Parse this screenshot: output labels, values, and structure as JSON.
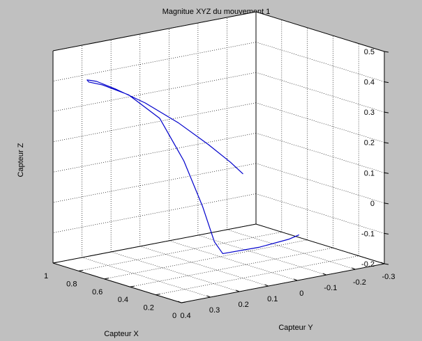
{
  "chart_data": {
    "type": "line",
    "projection": "3d",
    "title": "Magnitue XYZ du mouvement 1",
    "xlabel": "Capteur X",
    "ylabel": "Capteur Y",
    "zlabel": "Capteur Z",
    "xlim": [
      0,
      1
    ],
    "ylim": [
      -0.3,
      0.4
    ],
    "zlim": [
      -0.2,
      0.5
    ],
    "xticks": [
      "0",
      "0.2",
      "0.4",
      "0.6",
      "0.8",
      "1"
    ],
    "yticks": [
      "-0.3",
      "-0.2",
      "-0.1",
      "0",
      "0.1",
      "0.2",
      "0.3",
      "0.4"
    ],
    "zticks": [
      "-0.2",
      "-0.1",
      "0",
      "0.1",
      "0.2",
      "0.3",
      "0.4",
      "0.5"
    ],
    "grid": true,
    "series": [
      {
        "color": "#0000cc",
        "points": [
          [
            0.31,
            0.05,
            0.12
          ],
          [
            0.34,
            0.08,
            0.16
          ],
          [
            0.4,
            0.13,
            0.22
          ],
          [
            0.5,
            0.19,
            0.29
          ],
          [
            0.62,
            0.25,
            0.35
          ],
          [
            0.74,
            0.3,
            0.39
          ],
          [
            0.82,
            0.33,
            0.41
          ],
          [
            0.87,
            0.34,
            0.41
          ],
          [
            0.88,
            0.33,
            0.4
          ],
          [
            0.84,
            0.3,
            0.39
          ],
          [
            0.75,
            0.25,
            0.36
          ],
          [
            0.62,
            0.2,
            0.29
          ],
          [
            0.5,
            0.17,
            0.16
          ],
          [
            0.4,
            0.15,
            0.02
          ],
          [
            0.33,
            0.14,
            -0.09
          ],
          [
            0.31,
            0.12,
            -0.13
          ],
          [
            0.3,
            0.0,
            -0.13
          ],
          [
            0.29,
            -0.1,
            -0.12
          ],
          [
            0.28,
            -0.13,
            -0.11
          ]
        ]
      }
    ]
  }
}
